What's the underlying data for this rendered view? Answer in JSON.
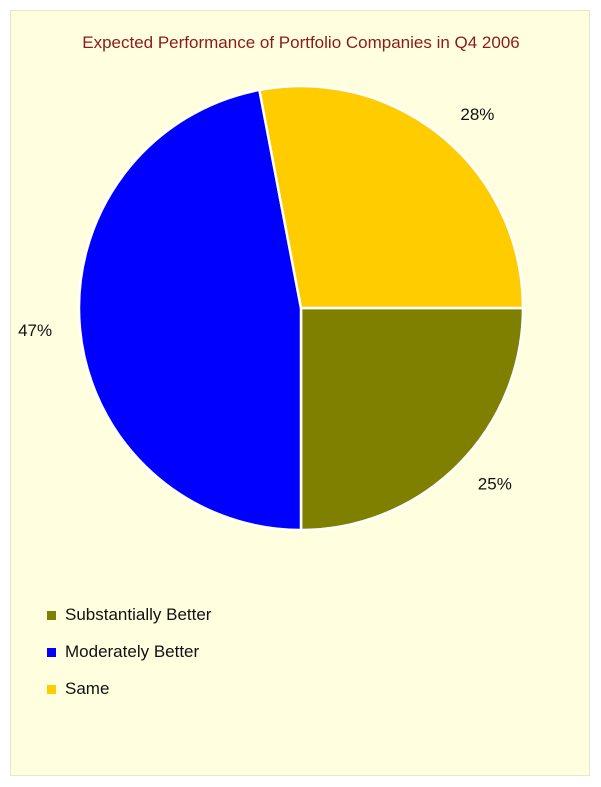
{
  "chart_data": {
    "type": "pie",
    "title": "Expected Performance of Portfolio Companies in Q4 2006",
    "categories": [
      "Substantially Better",
      "Moderately Better",
      "Same"
    ],
    "values": [
      25,
      47,
      28
    ],
    "labels": [
      "25%",
      "47%",
      "28%"
    ],
    "colors": [
      "#808000",
      "#0000ff",
      "#ffcc00"
    ],
    "legend_placement": "bottom-left"
  }
}
